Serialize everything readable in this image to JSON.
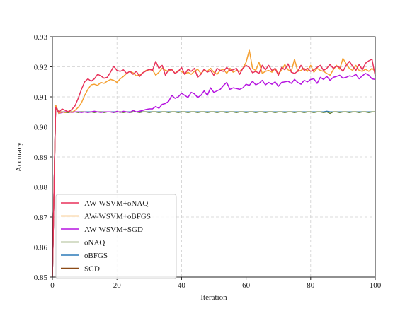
{
  "chart_data": {
    "type": "line",
    "title": "",
    "xlabel": "Iteration",
    "ylabel": "Accuracy",
    "xlim": [
      0,
      100
    ],
    "ylim": [
      0.85,
      0.93
    ],
    "xticks": [
      0,
      20,
      40,
      60,
      80,
      100
    ],
    "yticks": [
      0.85,
      0.86,
      0.87,
      0.88,
      0.89,
      0.9,
      0.91,
      0.92,
      0.93
    ],
    "grid": true,
    "legend_position": "lower-left",
    "x": [
      0,
      1,
      2,
      3,
      4,
      5,
      6,
      7,
      8,
      9,
      10,
      11,
      12,
      13,
      14,
      15,
      16,
      17,
      18,
      19,
      20,
      21,
      22,
      23,
      24,
      25,
      26,
      27,
      28,
      29,
      30,
      31,
      32,
      33,
      34,
      35,
      36,
      37,
      38,
      39,
      40,
      41,
      42,
      43,
      44,
      45,
      46,
      47,
      48,
      49,
      50,
      51,
      52,
      53,
      54,
      55,
      56,
      57,
      58,
      59,
      60,
      61,
      62,
      63,
      64,
      65,
      66,
      67,
      68,
      69,
      70,
      71,
      72,
      73,
      74,
      75,
      76,
      77,
      78,
      79,
      80,
      81,
      82,
      83,
      84,
      85,
      86,
      87,
      88,
      89,
      90,
      91,
      92,
      93,
      94,
      95,
      96,
      97,
      98,
      99,
      100
    ],
    "series": [
      {
        "name": "AW-WSVM+oNAQ",
        "color": "#e8315a",
        "values": [
          0.85,
          0.9065,
          0.9048,
          0.906,
          0.9055,
          0.905,
          0.9058,
          0.907,
          0.9095,
          0.9125,
          0.915,
          0.916,
          0.9152,
          0.916,
          0.9175,
          0.917,
          0.9162,
          0.9165,
          0.9182,
          0.9202,
          0.9188,
          0.9185,
          0.919,
          0.9178,
          0.9185,
          0.9175,
          0.9185,
          0.9168,
          0.918,
          0.9186,
          0.9192,
          0.9188,
          0.9218,
          0.9195,
          0.9205,
          0.9172,
          0.919,
          0.919,
          0.9178,
          0.9185,
          0.9198,
          0.9175,
          0.9192,
          0.9185,
          0.9195,
          0.9165,
          0.9175,
          0.9192,
          0.9182,
          0.9188,
          0.9172,
          0.9195,
          0.9188,
          0.9185,
          0.9198,
          0.9188,
          0.919,
          0.9195,
          0.9175,
          0.9195,
          0.9205,
          0.9198,
          0.918,
          0.9185,
          0.9178,
          0.9205,
          0.919,
          0.9205,
          0.9188,
          0.9195,
          0.9172,
          0.9198,
          0.919,
          0.921,
          0.9182,
          0.9178,
          0.9185,
          0.9205,
          0.9188,
          0.9195,
          0.9185,
          0.919,
          0.9198,
          0.9205,
          0.9188,
          0.9195,
          0.9208,
          0.9195,
          0.9202,
          0.9198,
          0.9185,
          0.9205,
          0.9218,
          0.9202,
          0.9188,
          0.9208,
          0.919,
          0.9212,
          0.922,
          0.9225,
          0.917
        ]
      },
      {
        "name": "AW-WSVM+oBFGS",
        "color": "#f5a031",
        "values": [
          0.85,
          0.9072,
          0.9045,
          0.905,
          0.9048,
          0.9052,
          0.9048,
          0.9055,
          0.9065,
          0.908,
          0.9105,
          0.9125,
          0.914,
          0.9142,
          0.9138,
          0.9148,
          0.9145,
          0.9152,
          0.9158,
          0.9155,
          0.9148,
          0.916,
          0.9168,
          0.9178,
          0.9185,
          0.918,
          0.917,
          0.9172,
          0.918,
          0.9188,
          0.919,
          0.919,
          0.9172,
          0.9182,
          0.9195,
          0.9188,
          0.9185,
          0.9192,
          0.9178,
          0.9188,
          0.9185,
          0.9175,
          0.9182,
          0.9175,
          0.9185,
          0.9192,
          0.9178,
          0.9188,
          0.9185,
          0.9195,
          0.9182,
          0.9175,
          0.9188,
          0.9192,
          0.9178,
          0.9195,
          0.9182,
          0.9188,
          0.9185,
          0.9195,
          0.9215,
          0.9255,
          0.9195,
          0.9188,
          0.9215,
          0.9178,
          0.9185,
          0.9188,
          0.9182,
          0.9195,
          0.9178,
          0.9188,
          0.9208,
          0.919,
          0.9185,
          0.9225,
          0.9185,
          0.9188,
          0.9195,
          0.9185,
          0.9205,
          0.9182,
          0.9195,
          0.9188,
          0.9185,
          0.9178,
          0.9172,
          0.919,
          0.9205,
          0.9192,
          0.9228,
          0.921,
          0.9195,
          0.9188,
          0.9205,
          0.9188,
          0.9185,
          0.9192,
          0.9185,
          0.9195,
          0.9185
        ]
      },
      {
        "name": "AW-WSVM+SGD",
        "color": "#b614e0",
        "values": [
          0.85,
          0.9072,
          0.9045,
          0.9048,
          0.905,
          0.905,
          0.9048,
          0.905,
          0.905,
          0.9048,
          0.905,
          0.9048,
          0.905,
          0.9052,
          0.905,
          0.9048,
          0.905,
          0.905,
          0.905,
          0.9048,
          0.9052,
          0.9048,
          0.9052,
          0.905,
          0.9048,
          0.9055,
          0.905,
          0.9052,
          0.9055,
          0.9058,
          0.906,
          0.906,
          0.9068,
          0.9062,
          0.9075,
          0.9078,
          0.9085,
          0.9105,
          0.9095,
          0.91,
          0.9112,
          0.9105,
          0.9098,
          0.9115,
          0.911,
          0.9098,
          0.9105,
          0.912,
          0.9105,
          0.913,
          0.9115,
          0.912,
          0.9125,
          0.9138,
          0.9148,
          0.9125,
          0.913,
          0.9128,
          0.9125,
          0.913,
          0.9142,
          0.9138,
          0.9152,
          0.914,
          0.9145,
          0.9155,
          0.914,
          0.9148,
          0.9142,
          0.915,
          0.9135,
          0.9148,
          0.915,
          0.9152,
          0.9145,
          0.9158,
          0.9148,
          0.9142,
          0.9155,
          0.915,
          0.9158,
          0.916,
          0.9145,
          0.9165,
          0.9158,
          0.9168,
          0.9155,
          0.9165,
          0.9168,
          0.9172,
          0.9162,
          0.9165,
          0.917,
          0.9168,
          0.9175,
          0.916,
          0.917,
          0.9178,
          0.9172,
          0.916,
          0.9158
        ]
      },
      {
        "name": "oNAQ",
        "color": "#5a7a28",
        "values": [
          0.85,
          0.9068,
          0.9045,
          0.905,
          0.9048,
          0.9048,
          0.905,
          0.905,
          0.9048,
          0.905,
          0.905,
          0.9048,
          0.905,
          0.9048,
          0.905,
          0.905,
          0.9048,
          0.905,
          0.905,
          0.9048,
          0.905,
          0.905,
          0.9048,
          0.905,
          0.9048,
          0.905,
          0.905,
          0.9048,
          0.905,
          0.905,
          0.9048,
          0.905,
          0.905,
          0.9048,
          0.905,
          0.905,
          0.9048,
          0.905,
          0.905,
          0.9048,
          0.905,
          0.905,
          0.9048,
          0.905,
          0.905,
          0.9048,
          0.905,
          0.905,
          0.9048,
          0.905,
          0.905,
          0.9048,
          0.905,
          0.905,
          0.9048,
          0.905,
          0.905,
          0.9048,
          0.905,
          0.905,
          0.9048,
          0.905,
          0.905,
          0.9048,
          0.905,
          0.905,
          0.9048,
          0.905,
          0.905,
          0.9048,
          0.905,
          0.905,
          0.9048,
          0.905,
          0.905,
          0.9048,
          0.905,
          0.905,
          0.9048,
          0.905,
          0.905,
          0.9048,
          0.905,
          0.905,
          0.9048,
          0.905,
          0.9045,
          0.905,
          0.905,
          0.9048,
          0.905,
          0.905,
          0.9048,
          0.905,
          0.905,
          0.9048,
          0.905,
          0.905,
          0.9048,
          0.905,
          0.905
        ]
      },
      {
        "name": "oBFGS",
        "color": "#2b7ab8",
        "values": [
          0.85,
          0.907,
          0.9046,
          0.905,
          0.905,
          0.905,
          0.905,
          0.905,
          0.905,
          0.905,
          0.905,
          0.905,
          0.905,
          0.905,
          0.905,
          0.905,
          0.905,
          0.905,
          0.905,
          0.905,
          0.905,
          0.905,
          0.905,
          0.905,
          0.905,
          0.905,
          0.905,
          0.905,
          0.905,
          0.905,
          0.905,
          0.905,
          0.905,
          0.905,
          0.905,
          0.905,
          0.905,
          0.905,
          0.905,
          0.905,
          0.905,
          0.905,
          0.905,
          0.905,
          0.905,
          0.905,
          0.905,
          0.905,
          0.905,
          0.905,
          0.905,
          0.905,
          0.905,
          0.905,
          0.905,
          0.905,
          0.905,
          0.905,
          0.905,
          0.905,
          0.905,
          0.905,
          0.905,
          0.905,
          0.905,
          0.905,
          0.905,
          0.905,
          0.905,
          0.905,
          0.905,
          0.905,
          0.905,
          0.905,
          0.905,
          0.905,
          0.905,
          0.905,
          0.905,
          0.905,
          0.905,
          0.905,
          0.905,
          0.905,
          0.905,
          0.9052,
          0.905,
          0.905,
          0.905,
          0.905,
          0.905,
          0.905,
          0.905,
          0.905,
          0.905,
          0.905,
          0.905,
          0.905,
          0.905,
          0.905,
          0.905
        ]
      },
      {
        "name": "SGD",
        "color": "#8b4a16",
        "values": [
          0.85,
          0.9072,
          0.9048,
          0.905,
          0.905,
          0.905,
          0.905,
          0.905,
          0.905,
          0.905,
          0.905,
          0.905,
          0.905,
          0.905,
          0.905,
          0.905,
          0.905,
          0.905,
          0.905,
          0.905,
          0.905,
          0.905,
          0.905,
          0.905,
          0.905,
          0.905,
          0.905,
          0.905,
          0.905,
          0.905,
          0.905,
          0.905,
          0.905,
          0.905,
          0.905,
          0.905,
          0.905,
          0.905,
          0.905,
          0.905,
          0.905,
          0.905,
          0.905,
          0.905,
          0.905,
          0.905,
          0.905,
          0.905,
          0.905,
          0.905,
          0.905,
          0.905,
          0.905,
          0.905,
          0.905,
          0.905,
          0.905,
          0.905,
          0.905,
          0.905,
          0.905,
          0.905,
          0.905,
          0.905,
          0.905,
          0.905,
          0.905,
          0.905,
          0.905,
          0.905,
          0.905,
          0.905,
          0.905,
          0.905,
          0.905,
          0.905,
          0.905,
          0.905,
          0.905,
          0.905,
          0.905,
          0.905,
          0.905,
          0.905,
          0.905,
          0.905,
          0.905,
          0.905,
          0.905,
          0.905,
          0.905,
          0.905,
          0.905,
          0.905,
          0.905,
          0.905,
          0.905,
          0.905,
          0.905,
          0.905,
          0.905
        ]
      }
    ]
  }
}
